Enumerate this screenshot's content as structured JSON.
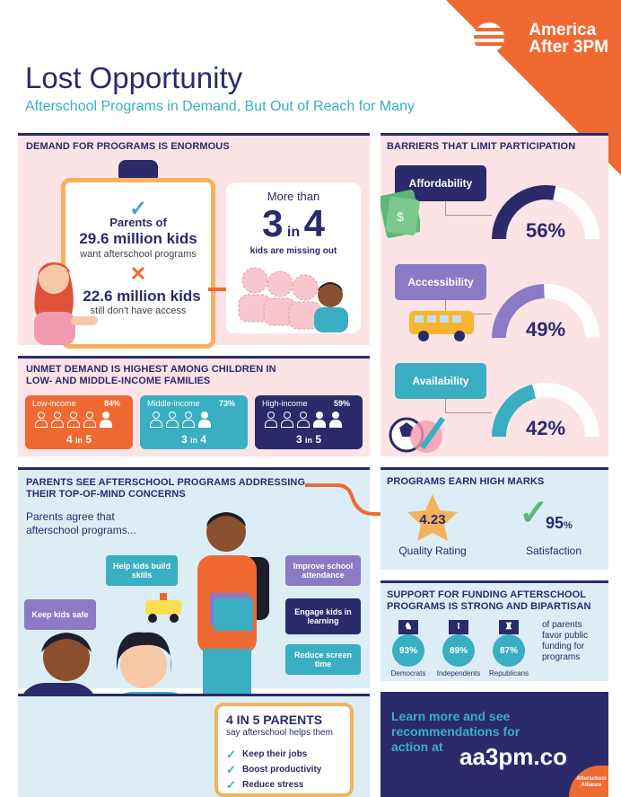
{
  "header": {
    "logo_line1": "America",
    "logo_line2": "After 3PM",
    "title": "Lost Opportunity",
    "subtitle": "Afterschool Programs in Demand, But Out of Reach for Many"
  },
  "demand": {
    "heading": "DEMAND FOR PROGRAMS IS ENORMOUS",
    "parents_of": "Parents of",
    "kids_want": "29.6 million kids",
    "want_text": "want afterschool programs",
    "kids_no_access": "22.6 million kids",
    "no_access_text": "still don't have access",
    "more_than": "More than",
    "ratio_a": "3",
    "ratio_in": "in",
    "ratio_b": "4",
    "missing_out": "kids are missing out"
  },
  "barriers": {
    "heading": "BARRIERS THAT LIMIT PARTICIPATION",
    "items": [
      {
        "label": "Affordability",
        "value": "56%",
        "pct": 56,
        "color": "#2b2a6a"
      },
      {
        "label": "Accessibility",
        "value": "49%",
        "pct": 49,
        "color": "#8a7bc4"
      },
      {
        "label": "Availability",
        "value": "42%",
        "pct": 42,
        "color": "#3aaec2"
      }
    ]
  },
  "unmet": {
    "heading_line1": "UNMET DEMAND IS HIGHEST AMONG CHILDREN IN",
    "heading_line2": "LOW- AND MIDDLE-INCOME FAMILIES",
    "groups": [
      {
        "label": "Low-income",
        "pct": "84%",
        "ratio_a": "4",
        "ratio_in": "in",
        "ratio_b": "5",
        "color": "#ef6a33",
        "filled": 4,
        "total": 5
      },
      {
        "label": "Middle-income",
        "pct": "73%",
        "ratio_a": "3",
        "ratio_in": "in",
        "ratio_b": "4",
        "color": "#3aaec2",
        "filled": 3,
        "total": 4
      },
      {
        "label": "High-income",
        "pct": "59%",
        "ratio_a": "3",
        "ratio_in": "in",
        "ratio_b": "5",
        "color": "#2b2a6a",
        "filled": 3,
        "total": 5
      }
    ]
  },
  "concerns": {
    "heading_line1": "PARENTS SEE AFTERSCHOOL PROGRAMS ADDRESSING",
    "heading_line2": "THEIR TOP-OF-MIND CONCERNS",
    "intro_line1": "Parents agree that",
    "intro_line2": "afterschool programs...",
    "tags": {
      "skills": "Help kids build skills",
      "safe": "Keep kids safe",
      "attendance": "Improve school attendance",
      "learning": "Engage kids in learning",
      "screen": "Reduce screen time"
    }
  },
  "marks": {
    "heading": "PROGRAMS EARN HIGH MARKS",
    "rating_value": "4.23",
    "rating_label": "Quality Rating",
    "satisfaction_value": "95",
    "satisfaction_unit": "%",
    "satisfaction_label": "Satisfaction"
  },
  "support": {
    "heading_line1": "SUPPORT FOR FUNDING AFTERSCHOOL",
    "heading_line2": "PROGRAMS IS STRONG AND BIPARTISAN",
    "groups": [
      {
        "value": "93%",
        "label": "Democrats",
        "icon": "donkey-icon"
      },
      {
        "value": "89%",
        "label": "Independents",
        "icon": "i-icon"
      },
      {
        "value": "87%",
        "label": "Republicans",
        "icon": "elephant-icon"
      }
    ],
    "note": "of parents favor public funding for programs"
  },
  "parents_help": {
    "title": "4 IN 5 PARENTS",
    "subtitle": "say afterschool helps them",
    "items": [
      "Keep their jobs",
      "Boost productivity",
      "Reduce stress"
    ]
  },
  "cta": {
    "line1": "Learn more and see",
    "line2": "recommendations for",
    "line3": "action at",
    "url": "aa3pm.co",
    "badge_line1": "Afterschool",
    "badge_line2": "Alliance"
  }
}
